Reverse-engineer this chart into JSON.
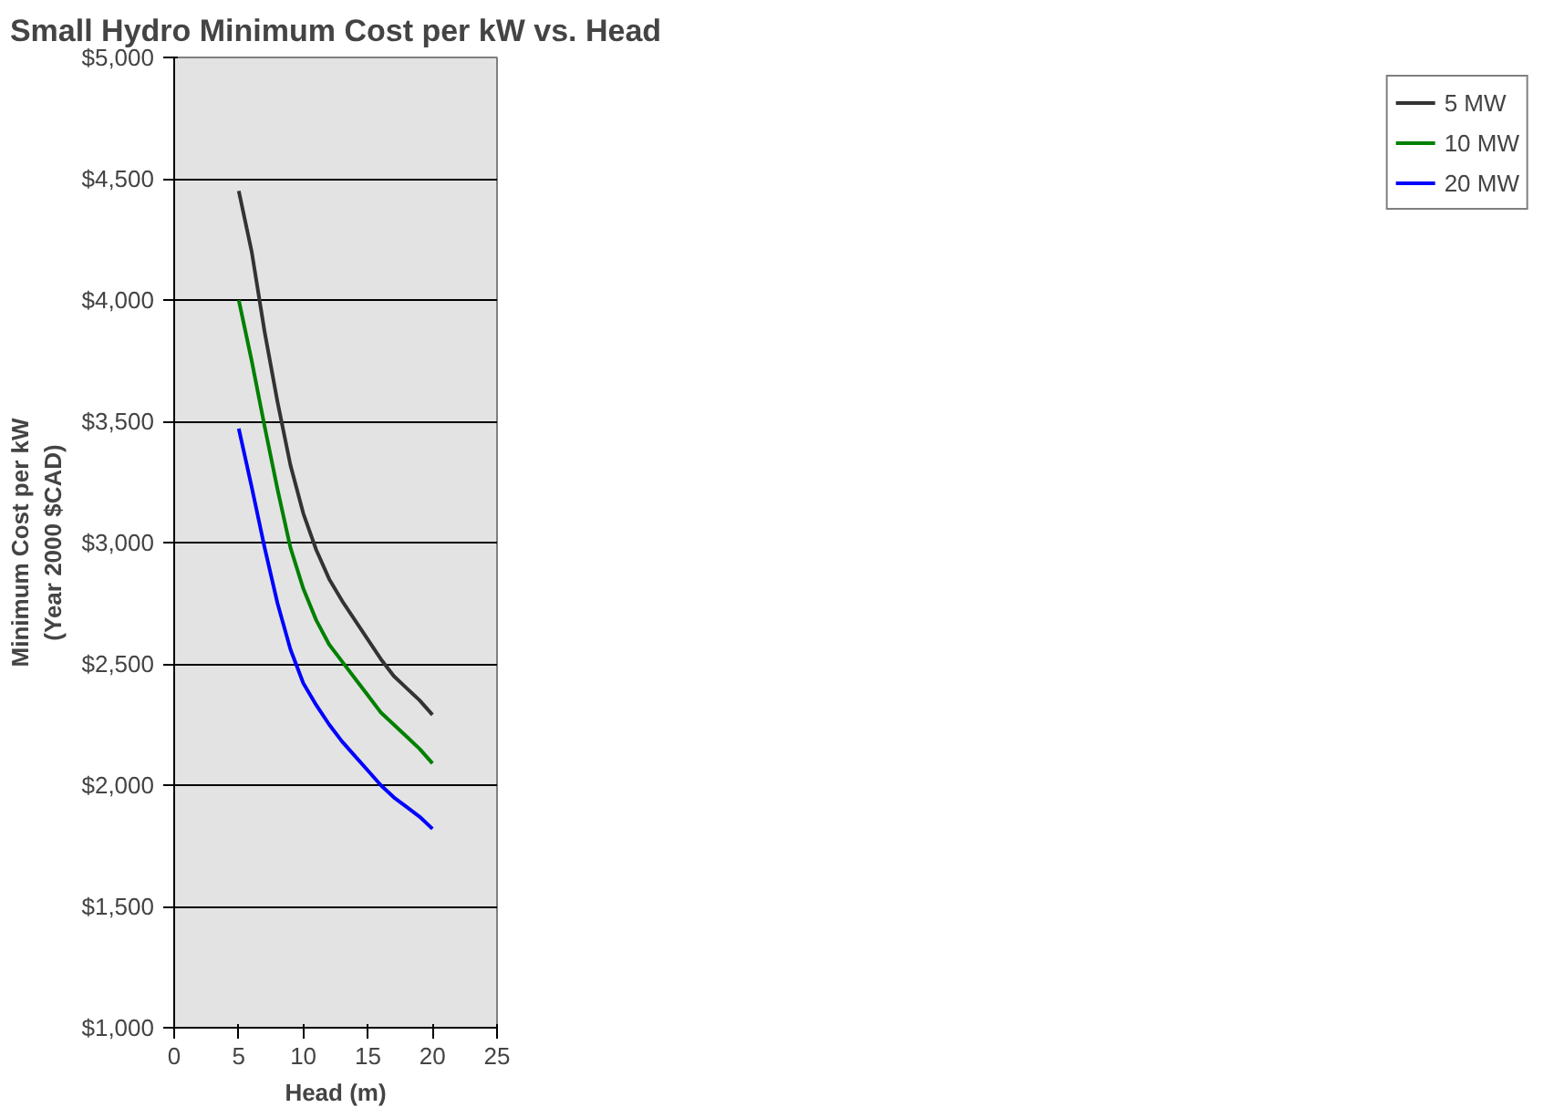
{
  "chart_data": {
    "type": "line",
    "title": "Small Hydro Minimum Cost per kW vs. Head",
    "xlabel": "Head (m)",
    "ylabel": "Minimum Cost per kW\n(Year 2000 $CAD)",
    "x": [
      5,
      6,
      7,
      8,
      9,
      10,
      11,
      12,
      13,
      14,
      15,
      16,
      17,
      18,
      19,
      20
    ],
    "series": [
      {
        "name": "5 MW",
        "color": "#333333",
        "values": [
          4450,
          4200,
          3870,
          3580,
          3320,
          3120,
          2970,
          2850,
          2760,
          2680,
          2600,
          2520,
          2450,
          2400,
          2350,
          2290
        ]
      },
      {
        "name": "10 MW",
        "color": "#008000",
        "values": [
          4000,
          3750,
          3480,
          3220,
          2980,
          2810,
          2680,
          2580,
          2510,
          2440,
          2370,
          2300,
          2250,
          2200,
          2150,
          2090
        ]
      },
      {
        "name": "20 MW",
        "color": "#0000ff",
        "values": [
          3470,
          3230,
          2980,
          2750,
          2560,
          2420,
          2330,
          2250,
          2180,
          2120,
          2060,
          2000,
          1950,
          1910,
          1870,
          1820
        ]
      }
    ],
    "xlim": [
      0,
      25
    ],
    "xticks": [
      0,
      5,
      10,
      15,
      20,
      25
    ],
    "ylim": [
      1000,
      5000
    ],
    "yticks": [
      {
        "value": 1000,
        "label": "$1,000"
      },
      {
        "value": 1500,
        "label": "$1,500"
      },
      {
        "value": 2000,
        "label": "$2,000"
      },
      {
        "value": 2500,
        "label": "$2,500"
      },
      {
        "value": 3000,
        "label": "$3,000"
      },
      {
        "value": 3500,
        "label": "$3,500"
      },
      {
        "value": 4000,
        "label": "$4,000"
      },
      {
        "value": 4500,
        "label": "$4,500"
      },
      {
        "value": 5000,
        "label": "$5,000"
      }
    ],
    "grid": "y",
    "legend": "right",
    "marker": "none",
    "line_style": "solid"
  }
}
